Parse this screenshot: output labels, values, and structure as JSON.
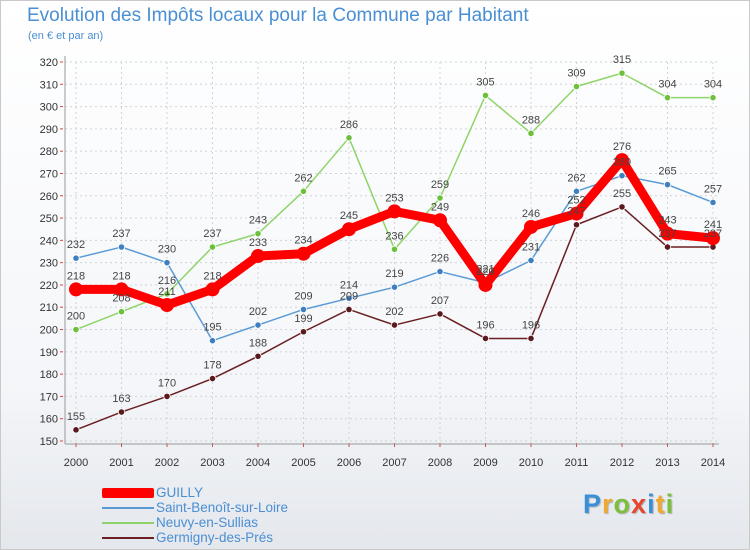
{
  "header": {
    "title": "Evolution des Impôts locaux pour la Commune par Habitant",
    "subtitle": "(en € et par an)"
  },
  "logo": {
    "letters": [
      "P",
      "r",
      "o",
      "x",
      "i",
      "t",
      "i"
    ],
    "colors": [
      "#3b8fd9",
      "#f0a830",
      "#7cbf3a",
      "#e8462c",
      "#3b8fd9",
      "#f0a830",
      "#7cbf3a"
    ]
  },
  "chart_data": {
    "type": "line",
    "title": "Evolution des Impôts locaux pour la Commune par Habitant",
    "subtitle": "(en € et par an)",
    "xlabel": "",
    "ylabel": "",
    "ylim": [
      150,
      320
    ],
    "y_ticks": [
      150,
      160,
      170,
      180,
      190,
      200,
      210,
      220,
      230,
      240,
      250,
      260,
      270,
      280,
      290,
      300,
      310,
      320
    ],
    "grid": true,
    "legend_position": "bottom-left",
    "categories": [
      "2000",
      "2001",
      "2002",
      "2003",
      "2004",
      "2005",
      "2006",
      "2007",
      "2008",
      "2009",
      "2010",
      "2011",
      "2012",
      "2013",
      "2014"
    ],
    "series": [
      {
        "name": "Germigny-des-Prés",
        "color": "#6b1f22",
        "point_color": "#5a1a1d",
        "values": [
          155,
          163,
          170,
          178,
          188,
          199,
          209,
          202,
          207,
          196,
          196,
          247,
          255,
          237,
          237
        ],
        "labels": [
          "155",
          "163",
          "170",
          "178",
          "188",
          "199",
          "209",
          "202",
          "207",
          "196",
          "196",
          "",
          "255",
          "237",
          ""
        ]
      },
      {
        "name": "Neuvy-en-Sullias",
        "color": "#8fd46a",
        "point_color": "#6cc03a",
        "values": [
          200,
          208,
          216,
          237,
          243,
          262,
          286,
          236,
          259,
          305,
          288,
          309,
          315,
          304,
          304
        ],
        "labels": [
          "200",
          "208",
          "216",
          "237",
          "243",
          "262",
          "286",
          "236",
          "259",
          "305",
          "288",
          "309",
          "315",
          "304",
          "304"
        ]
      },
      {
        "name": "Saint-Benoît-sur-Loire",
        "color": "#5b9bd5",
        "point_color": "#3f7fc0",
        "values": [
          232,
          237,
          230,
          195,
          202,
          209,
          214,
          219,
          226,
          221,
          231,
          262,
          269,
          265,
          257
        ],
        "labels": [
          "232",
          "237",
          "230",
          "195",
          "202",
          "209",
          "214",
          "219",
          "226",
          "",
          "231",
          "262",
          "269",
          "265",
          "257"
        ]
      },
      {
        "name": "GUILLY",
        "color": "#ff0000",
        "point_color": "#ff0000",
        "values": [
          218,
          218,
          211,
          218,
          233,
          234,
          245,
          253,
          249,
          220,
          246,
          252,
          276,
          243,
          241
        ],
        "labels": [
          "218",
          "218",
          "211",
          "218",
          "233",
          "234",
          "245",
          "253",
          "249",
          "220",
          "246",
          "252",
          "276",
          "243",
          "241"
        ]
      }
    ],
    "extra_labels": [
      {
        "series": "Saint-Benoît-sur-Loire",
        "index": 9,
        "text": "221"
      },
      {
        "series": "Germigny-des-Prés",
        "index": 11,
        "text": "247"
      },
      {
        "series": "Germigny-des-Prés",
        "index": 14,
        "text": "237"
      }
    ],
    "legend": [
      "GUILLY",
      "Saint-Benoît-sur-Loire",
      "Neuvy-en-Sullias",
      "Germigny-des-Prés"
    ]
  }
}
